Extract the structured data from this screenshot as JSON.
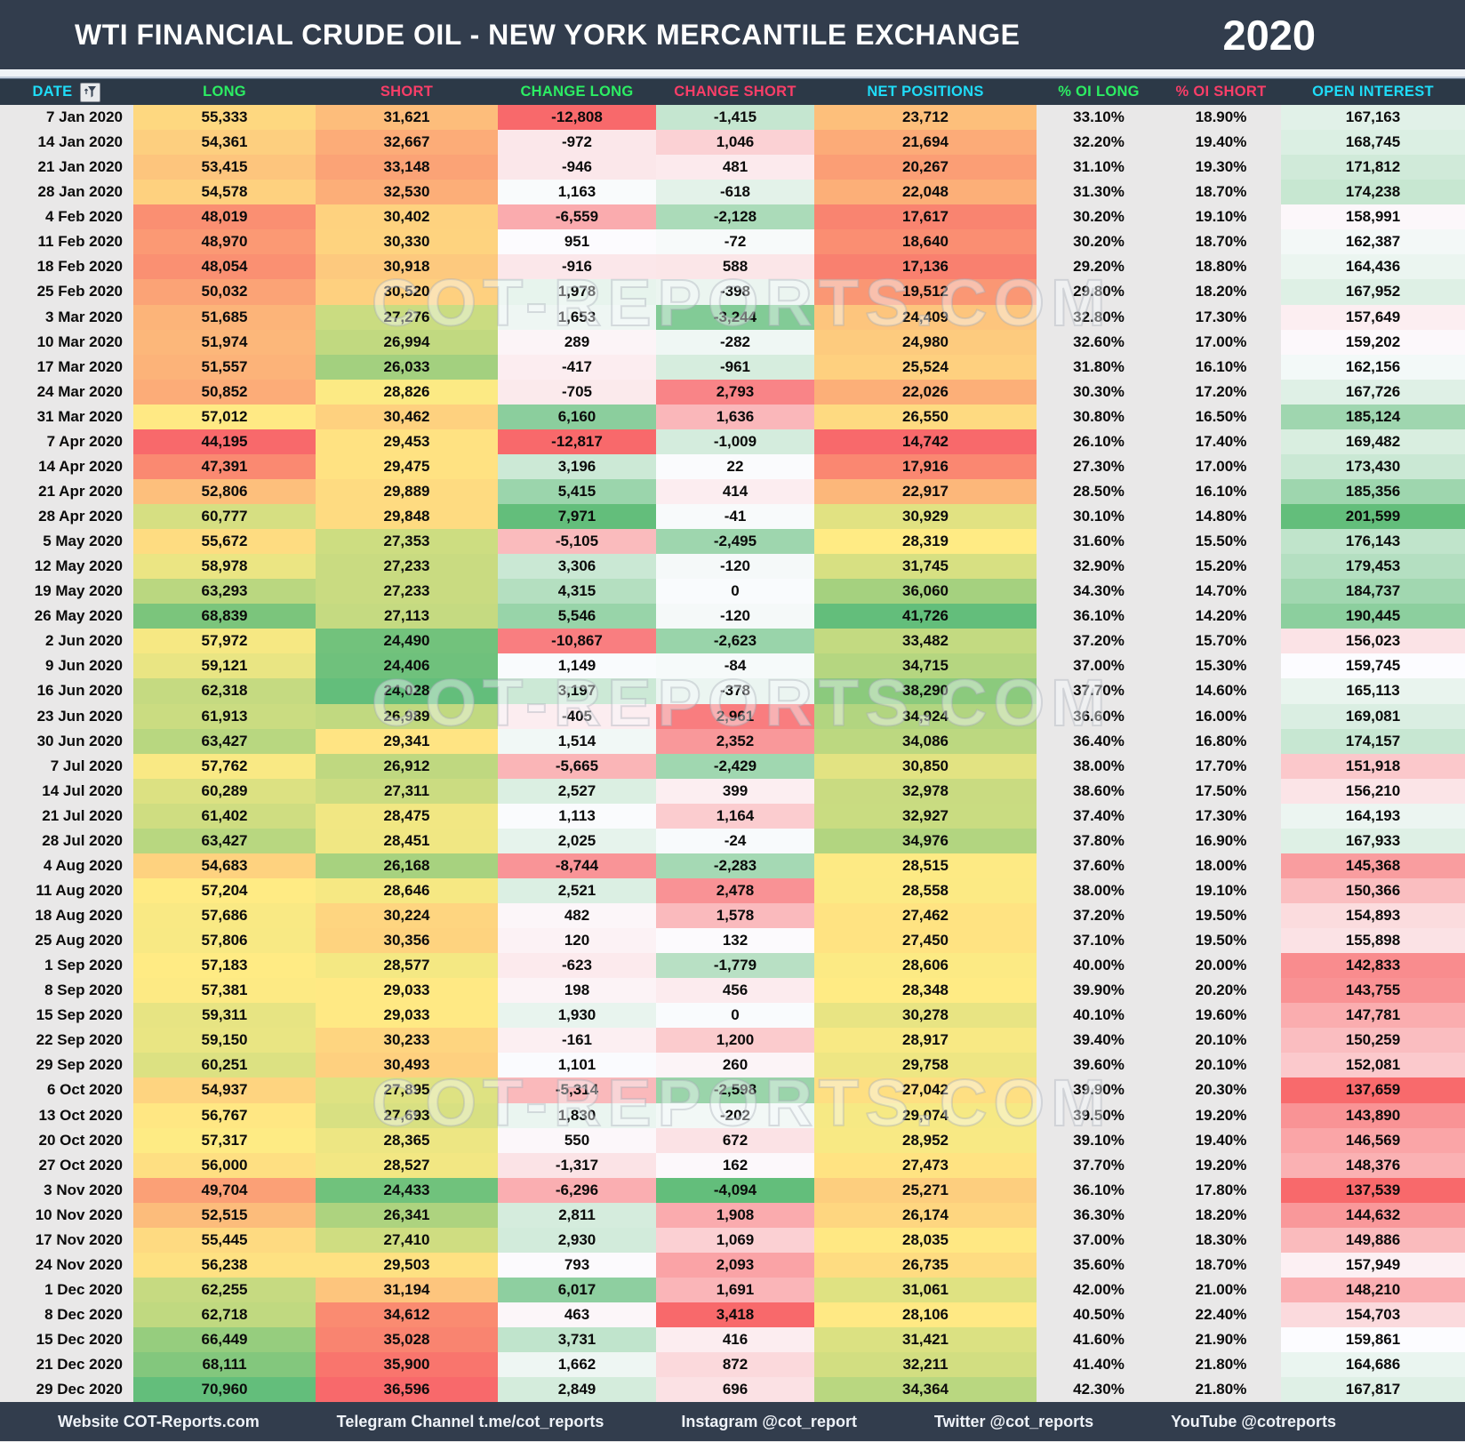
{
  "header": {
    "title": "WTI FINANCIAL CRUDE OIL - NEW YORK MERCANTILE EXCHANGE",
    "year": "2020"
  },
  "watermark": "COT-REPORTS.COM",
  "colors": {
    "bar_bg": "#323d4d",
    "header_row_bg": "#2c3947",
    "neutral_cell": "#e9e8e8",
    "cyan": "#1fdcf8",
    "green": "#2ced63",
    "pink": "#f93e68",
    "scale_red": "#f8696b",
    "scale_yellow": "#ffeb84",
    "scale_green": "#63be7b",
    "scale_white": "#fcfcff"
  },
  "chart_data": {
    "type": "table",
    "title": "WTI FINANCIAL CRUDE OIL - NEW YORK MERCANTILE EXCHANGE 2020",
    "columns": [
      {
        "label": "DATE",
        "hue": "cyan",
        "scale": "none",
        "format": "text"
      },
      {
        "label": "LONG",
        "hue": "green",
        "scale": "ryg",
        "format": "int"
      },
      {
        "label": "SHORT",
        "hue": "pink",
        "scale": "gyr",
        "format": "int"
      },
      {
        "label": "CHANGE LONG",
        "hue": "green",
        "scale": "rwg",
        "format": "int"
      },
      {
        "label": "CHANGE SHORT",
        "hue": "pink",
        "scale": "gwr",
        "format": "int"
      },
      {
        "label": "NET POSITIONS",
        "hue": "cyan",
        "scale": "ryg",
        "format": "int"
      },
      {
        "label": "% OI LONG",
        "hue": "green",
        "scale": "none",
        "format": "pct"
      },
      {
        "label": "% OI SHORT",
        "hue": "pink",
        "scale": "none",
        "format": "pct"
      },
      {
        "label": "OPEN INTEREST",
        "hue": "cyan",
        "scale": "rwg",
        "format": "int"
      }
    ],
    "rows": [
      [
        "7 Jan 2020",
        55333,
        31621,
        -12808,
        -1415,
        23712,
        33.1,
        18.9,
        167163
      ],
      [
        "14 Jan 2020",
        54361,
        32667,
        -972,
        1046,
        21694,
        32.2,
        19.4,
        168745
      ],
      [
        "21 Jan 2020",
        53415,
        33148,
        -946,
        481,
        20267,
        31.1,
        19.3,
        171812
      ],
      [
        "28 Jan 2020",
        54578,
        32530,
        1163,
        -618,
        22048,
        31.3,
        18.7,
        174238
      ],
      [
        "4 Feb 2020",
        48019,
        30402,
        -6559,
        -2128,
        17617,
        30.2,
        19.1,
        158991
      ],
      [
        "11 Feb 2020",
        48970,
        30330,
        951,
        -72,
        18640,
        30.2,
        18.7,
        162387
      ],
      [
        "18 Feb 2020",
        48054,
        30918,
        -916,
        588,
        17136,
        29.2,
        18.8,
        164436
      ],
      [
        "25 Feb 2020",
        50032,
        30520,
        1978,
        -398,
        19512,
        29.8,
        18.2,
        167952
      ],
      [
        "3 Mar 2020",
        51685,
        27276,
        1653,
        -3244,
        24409,
        32.8,
        17.3,
        157649
      ],
      [
        "10 Mar 2020",
        51974,
        26994,
        289,
        -282,
        24980,
        32.6,
        17.0,
        159202
      ],
      [
        "17 Mar 2020",
        51557,
        26033,
        -417,
        -961,
        25524,
        31.8,
        16.1,
        162156
      ],
      [
        "24 Mar 2020",
        50852,
        28826,
        -705,
        2793,
        22026,
        30.3,
        17.2,
        167726
      ],
      [
        "31 Mar 2020",
        57012,
        30462,
        6160,
        1636,
        26550,
        30.8,
        16.5,
        185124
      ],
      [
        "7 Apr 2020",
        44195,
        29453,
        -12817,
        -1009,
        14742,
        26.1,
        17.4,
        169482
      ],
      [
        "14 Apr 2020",
        47391,
        29475,
        3196,
        22,
        17916,
        27.3,
        17.0,
        173430
      ],
      [
        "21 Apr 2020",
        52806,
        29889,
        5415,
        414,
        22917,
        28.5,
        16.1,
        185356
      ],
      [
        "28 Apr 2020",
        60777,
        29848,
        7971,
        -41,
        30929,
        30.1,
        14.8,
        201599
      ],
      [
        "5 May 2020",
        55672,
        27353,
        -5105,
        -2495,
        28319,
        31.6,
        15.5,
        176143
      ],
      [
        "12 May 2020",
        58978,
        27233,
        3306,
        -120,
        31745,
        32.9,
        15.2,
        179453
      ],
      [
        "19 May 2020",
        63293,
        27233,
        4315,
        0,
        36060,
        34.3,
        14.7,
        184737
      ],
      [
        "26 May 2020",
        68839,
        27113,
        5546,
        -120,
        41726,
        36.1,
        14.2,
        190445
      ],
      [
        "2 Jun 2020",
        57972,
        24490,
        -10867,
        -2623,
        33482,
        37.2,
        15.7,
        156023
      ],
      [
        "9 Jun 2020",
        59121,
        24406,
        1149,
        -84,
        34715,
        37.0,
        15.3,
        159745
      ],
      [
        "16 Jun 2020",
        62318,
        24028,
        3197,
        -378,
        38290,
        37.7,
        14.6,
        165113
      ],
      [
        "23 Jun 2020",
        61913,
        26989,
        -405,
        2961,
        34924,
        36.6,
        16.0,
        169081
      ],
      [
        "30 Jun 2020",
        63427,
        29341,
        1514,
        2352,
        34086,
        36.4,
        16.8,
        174157
      ],
      [
        "7 Jul 2020",
        57762,
        26912,
        -5665,
        -2429,
        30850,
        38.0,
        17.7,
        151918
      ],
      [
        "14 Jul 2020",
        60289,
        27311,
        2527,
        399,
        32978,
        38.6,
        17.5,
        156210
      ],
      [
        "21 Jul 2020",
        61402,
        28475,
        1113,
        1164,
        32927,
        37.4,
        17.3,
        164193
      ],
      [
        "28 Jul 2020",
        63427,
        28451,
        2025,
        -24,
        34976,
        37.8,
        16.9,
        167933
      ],
      [
        "4 Aug 2020",
        54683,
        26168,
        -8744,
        -2283,
        28515,
        37.6,
        18.0,
        145368
      ],
      [
        "11 Aug 2020",
        57204,
        28646,
        2521,
        2478,
        28558,
        38.0,
        19.1,
        150366
      ],
      [
        "18 Aug 2020",
        57686,
        30224,
        482,
        1578,
        27462,
        37.2,
        19.5,
        154893
      ],
      [
        "25 Aug 2020",
        57806,
        30356,
        120,
        132,
        27450,
        37.1,
        19.5,
        155898
      ],
      [
        "1 Sep 2020",
        57183,
        28577,
        -623,
        -1779,
        28606,
        40.0,
        20.0,
        142833
      ],
      [
        "8 Sep 2020",
        57381,
        29033,
        198,
        456,
        28348,
        39.9,
        20.2,
        143755
      ],
      [
        "15 Sep 2020",
        59311,
        29033,
        1930,
        0,
        30278,
        40.1,
        19.6,
        147781
      ],
      [
        "22 Sep 2020",
        59150,
        30233,
        -161,
        1200,
        28917,
        39.4,
        20.1,
        150259
      ],
      [
        "29 Sep 2020",
        60251,
        30493,
        1101,
        260,
        29758,
        39.6,
        20.1,
        152081
      ],
      [
        "6 Oct 2020",
        54937,
        27895,
        -5314,
        -2598,
        27042,
        39.9,
        20.3,
        137659
      ],
      [
        "13 Oct 2020",
        56767,
        27693,
        1830,
        -202,
        29074,
        39.5,
        19.2,
        143890
      ],
      [
        "20 Oct 2020",
        57317,
        28365,
        550,
        672,
        28952,
        39.1,
        19.4,
        146569
      ],
      [
        "27 Oct 2020",
        56000,
        28527,
        -1317,
        162,
        27473,
        37.7,
        19.2,
        148376
      ],
      [
        "3 Nov 2020",
        49704,
        24433,
        -6296,
        -4094,
        25271,
        36.1,
        17.8,
        137539
      ],
      [
        "10 Nov 2020",
        52515,
        26341,
        2811,
        1908,
        26174,
        36.3,
        18.2,
        144632
      ],
      [
        "17 Nov 2020",
        55445,
        27410,
        2930,
        1069,
        28035,
        37.0,
        18.3,
        149886
      ],
      [
        "24 Nov 2020",
        56238,
        29503,
        793,
        2093,
        26735,
        35.6,
        18.7,
        157949
      ],
      [
        "1 Dec 2020",
        62255,
        31194,
        6017,
        1691,
        31061,
        42.0,
        21.0,
        148210
      ],
      [
        "8 Dec 2020",
        62718,
        34612,
        463,
        3418,
        28106,
        40.5,
        22.4,
        154703
      ],
      [
        "15 Dec 2020",
        66449,
        35028,
        3731,
        416,
        31421,
        41.6,
        21.9,
        159861
      ],
      [
        "21 Dec 2020",
        68111,
        35900,
        1662,
        872,
        32211,
        41.4,
        21.8,
        164686
      ],
      [
        "29 Dec 2020",
        70960,
        36596,
        2849,
        696,
        34364,
        42.3,
        21.8,
        167817
      ]
    ]
  },
  "footer": {
    "items": [
      "Website COT-Reports.com",
      "Telegram Channel t.me/cot_reports",
      "Instagram @cot_report",
      "Twitter @cot_reports",
      "YouTube @cotreports"
    ]
  }
}
